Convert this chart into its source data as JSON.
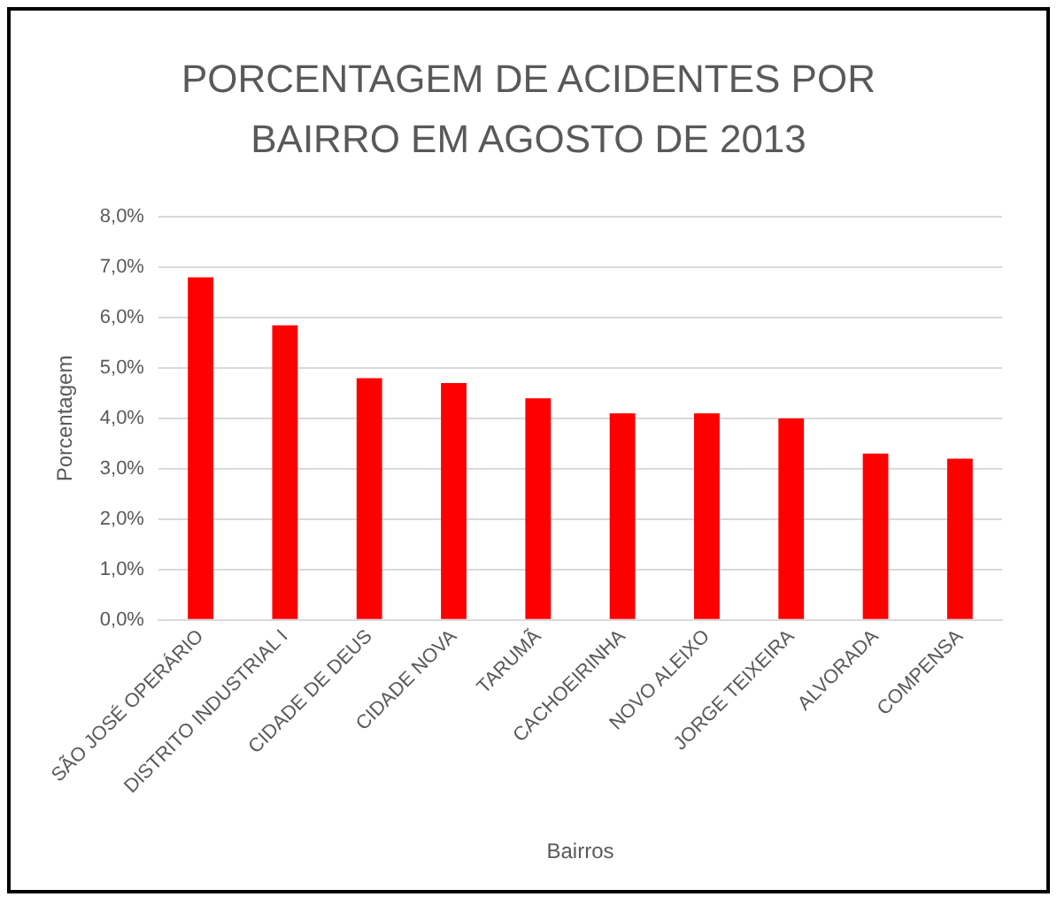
{
  "chart_data": {
    "type": "bar",
    "title": "PORCENTAGEM DE ACIDENTES POR BAIRRO EM AGOSTO DE 2013",
    "xlabel": "Bairros",
    "ylabel": "Porcentagem",
    "categories": [
      "SÃO JOSÉ OPERÁRIO",
      "DISTRITO INDUSTRIAL I",
      "CIDADE DE DEUS",
      "CIDADE NOVA",
      "TARUMÃ",
      "CACHOEIRINHA",
      "NOVO ALEIXO",
      "JORGE TEIXEIRA",
      "ALVORADA",
      "COMPENSA"
    ],
    "values": [
      6.8,
      5.85,
      4.8,
      4.7,
      4.4,
      4.1,
      4.1,
      4.0,
      3.3,
      3.2
    ],
    "color": "#ff0000",
    "ylim": [
      0,
      8
    ],
    "yticks": [
      {
        "value": 0,
        "label": "0,0%"
      },
      {
        "value": 1,
        "label": "1,0%"
      },
      {
        "value": 2,
        "label": "2,0%"
      },
      {
        "value": 3,
        "label": "3,0%"
      },
      {
        "value": 4,
        "label": "4,0%"
      },
      {
        "value": 5,
        "label": "5,0%"
      },
      {
        "value": 6,
        "label": "6,0%"
      },
      {
        "value": 7,
        "label": "7,0%"
      },
      {
        "value": 8,
        "label": "8,0%"
      }
    ],
    "grid": "y"
  }
}
